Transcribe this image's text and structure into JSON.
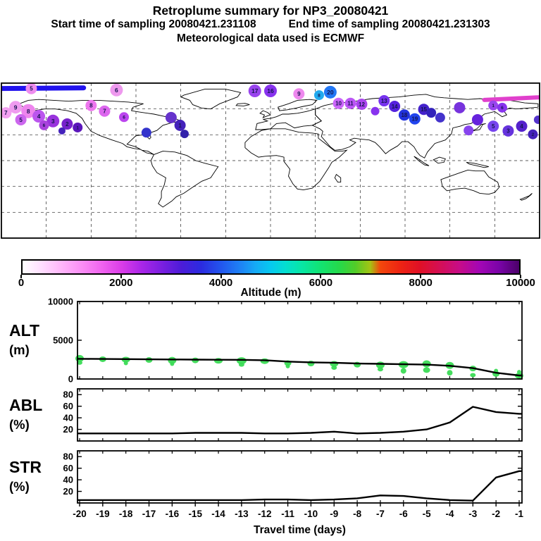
{
  "header": {
    "title": "Retroplume summary for NP3_20080421",
    "start_line": "Start time of sampling 20080421.231108",
    "end_line": "End time of sampling 20080421.231303",
    "met_line": "Meteorological data used is ECMWF"
  },
  "colorbar": {
    "label": "Altitude (m)",
    "tick_labels": [
      "0",
      "2000",
      "4000",
      "6000",
      "8000",
      "10000"
    ],
    "stops_pos_color": [
      [
        0,
        "#ffffff"
      ],
      [
        0.04,
        "#ffdcff"
      ],
      [
        0.08,
        "#ffb4fa"
      ],
      [
        0.12,
        "#fa8df5"
      ],
      [
        0.16,
        "#f063ef"
      ],
      [
        0.2,
        "#da3ce8"
      ],
      [
        0.24,
        "#a926e8"
      ],
      [
        0.28,
        "#7b1fe0"
      ],
      [
        0.32,
        "#4c1cd8"
      ],
      [
        0.36,
        "#2b2be0"
      ],
      [
        0.4,
        "#2256ee"
      ],
      [
        0.44,
        "#1e84f5"
      ],
      [
        0.47,
        "#15abf5"
      ],
      [
        0.5,
        "#06c9ef"
      ],
      [
        0.53,
        "#04ded0"
      ],
      [
        0.56,
        "#07e6a8"
      ],
      [
        0.6,
        "#12e372"
      ],
      [
        0.64,
        "#27d948"
      ],
      [
        0.67,
        "#52cc29"
      ],
      [
        0.7,
        "#a4c414"
      ],
      [
        0.72,
        "#f2480c"
      ],
      [
        0.76,
        "#ee2413"
      ],
      [
        0.8,
        "#e01026"
      ],
      [
        0.84,
        "#d40f55"
      ],
      [
        0.88,
        "#c70c88"
      ],
      [
        0.92,
        "#a306b5"
      ],
      [
        0.96,
        "#7a04a8"
      ],
      [
        1,
        "#4a0168"
      ]
    ]
  },
  "xaxis": {
    "label": "Travel time (days)",
    "ticks": [
      -20,
      -19,
      -18,
      -17,
      -16,
      -15,
      -14,
      -13,
      -12,
      -11,
      -10,
      -9,
      -8,
      -7,
      -6,
      -5,
      -4,
      -3,
      -2,
      -1
    ]
  },
  "chart_data": [
    {
      "type": "scatter",
      "name": "retroplume-map",
      "projection": "equirectangular",
      "lon_range": [
        -180,
        180
      ],
      "lat_range": [
        -90,
        90
      ],
      "grid_step_deg": 30,
      "marker_meaning": "daily plume centroids colored by altitude (m), labeled with travel day",
      "markers": [
        {
          "lon": -177,
          "lat": 55.5,
          "label": "7",
          "color": "#f2a0f0",
          "r": 8
        },
        {
          "lon": -170.5,
          "lat": 62,
          "label": "9",
          "color": "#ef9bef",
          "r": 9
        },
        {
          "lon": -162,
          "lat": 57.5,
          "label": "8",
          "color": "#ee85ee",
          "r": 10
        },
        {
          "lon": -167,
          "lat": 47.5,
          "label": "5",
          "color": "#cc66ee",
          "r": 8
        },
        {
          "lon": -155,
          "lat": 51.5,
          "label": "4",
          "color": "#bb55ee",
          "r": 9
        },
        {
          "lon": -145.5,
          "lat": 46,
          "label": "3",
          "color": "#9933dd",
          "r": 9
        },
        {
          "lon": -136,
          "lat": 42.5,
          "label": "2",
          "color": "#7722cc",
          "r": 8
        },
        {
          "lon": -129,
          "lat": 38.5,
          "label": "1",
          "color": "#5b16bb",
          "r": 7
        },
        {
          "lon": -151.5,
          "lat": 41,
          "label": "6",
          "color": "#aa44dd",
          "r": 7
        },
        {
          "lon": -139.5,
          "lat": 34.5,
          "label": "",
          "color": "#4422bb",
          "r": 5
        },
        {
          "lon": -160,
          "lat": 83.7,
          "label": "5",
          "color": "#ee8cee",
          "r": 8
        },
        {
          "lon": -120,
          "lat": 64,
          "label": "8",
          "color": "#ee77ee",
          "r": 8
        },
        {
          "lon": -111,
          "lat": 57.5,
          "label": "7",
          "color": "#dd66ee",
          "r": 8
        },
        {
          "lon": -103,
          "lat": 82,
          "label": "6",
          "color": "#ee99ee",
          "r": 9
        },
        {
          "lon": -98,
          "lat": 50.5,
          "label": "6",
          "color": "#bb44ee",
          "r": 7
        },
        {
          "lon": -83,
          "lat": 32.5,
          "label": "",
          "color": "#3333cc",
          "r": 7
        },
        {
          "lon": -66.5,
          "lat": 50,
          "label": "",
          "color": "#6633cc",
          "r": 8
        },
        {
          "lon": -60.5,
          "lat": 41,
          "label": "1",
          "color": "#4422bb",
          "r": 8
        },
        {
          "lon": -57.5,
          "lat": 31,
          "label": "",
          "color": "#3322aa",
          "r": 6
        },
        {
          "lon": -10.5,
          "lat": 81,
          "label": "17",
          "color": "#9944ee",
          "r": 9
        },
        {
          "lon": 0,
          "lat": 81,
          "label": "16",
          "color": "#8833ee",
          "r": 9
        },
        {
          "lon": 19,
          "lat": 77.5,
          "label": "9",
          "color": "#ee88ee",
          "r": 8
        },
        {
          "lon": 32.5,
          "lat": 76,
          "label": "8",
          "color": "#22aaee",
          "r": 7
        },
        {
          "lon": 40,
          "lat": 79.5,
          "label": "20",
          "color": "#2277f5",
          "r": 9
        },
        {
          "lon": 45.5,
          "lat": 66.5,
          "label": "10",
          "color": "#cc66fa",
          "r": 8
        },
        {
          "lon": 53.5,
          "lat": 66.5,
          "label": "11",
          "color": "#bb55f5",
          "r": 8
        },
        {
          "lon": 61,
          "lat": 65.5,
          "label": "12",
          "color": "#aa44ee",
          "r": 8
        },
        {
          "lon": 70,
          "lat": 57.5,
          "label": "",
          "color": "#8833ee",
          "r": 6
        },
        {
          "lon": 76,
          "lat": 69.5,
          "label": "13",
          "color": "#7733ee",
          "r": 8
        },
        {
          "lon": 83,
          "lat": 63,
          "label": "14",
          "color": "#5522dd",
          "r": 8
        },
        {
          "lon": 89.5,
          "lat": 53,
          "label": "18",
          "color": "#2233dd",
          "r": 8
        },
        {
          "lon": 96.5,
          "lat": 48.5,
          "label": "19",
          "color": "#2244ee",
          "r": 8
        },
        {
          "lon": 102.5,
          "lat": 59.5,
          "label": "15",
          "color": "#4422cc",
          "r": 8
        },
        {
          "lon": 107.5,
          "lat": 55.5,
          "label": "",
          "color": "#3322bb",
          "r": 7
        },
        {
          "lon": 113.5,
          "lat": 50,
          "label": "",
          "color": "#4433cc",
          "r": 7
        },
        {
          "lon": 126.5,
          "lat": 61.5,
          "label": "",
          "color": "#7733dd",
          "r": 8
        },
        {
          "lon": 132.5,
          "lat": 35,
          "label": "",
          "color": "#8844ee",
          "r": 7
        },
        {
          "lon": 138.5,
          "lat": 47.5,
          "label": "",
          "color": "#6622dd",
          "r": 8
        },
        {
          "lon": 149,
          "lat": 64,
          "label": "1",
          "color": "#9944ee",
          "r": 7
        },
        {
          "lon": 155,
          "lat": 61.5,
          "label": "6",
          "color": "#8833ee",
          "r": 7
        },
        {
          "lon": 149,
          "lat": 40,
          "label": "5",
          "color": "#7744ee",
          "r": 8
        },
        {
          "lon": 159,
          "lat": 34.5,
          "label": "3",
          "color": "#6633dd",
          "r": 8
        },
        {
          "lon": 168,
          "lat": 40,
          "label": "4",
          "color": "#5522cc",
          "r": 8
        },
        {
          "lon": 175.5,
          "lat": 30.5,
          "label": "2",
          "color": "#4422bb",
          "r": 7
        },
        {
          "lon": 179,
          "lat": 47.5,
          "label": "",
          "color": "#5533cc",
          "r": 6
        }
      ],
      "streaks": [
        {
          "lon": [
            -180,
            -125
          ],
          "lat": [
            83.8,
            84.5
          ],
          "color": "#2213ee",
          "width": 7
        },
        {
          "lon": [
            143,
            180
          ],
          "lat": [
            70.5,
            73.5
          ],
          "color": "#e040cc",
          "width": 6
        }
      ]
    },
    {
      "type": "line",
      "name": "ALT",
      "panel_label": [
        "ALT",
        "(m)"
      ],
      "ylim": [
        0,
        10000
      ],
      "yticks": [
        0,
        5000,
        10000
      ],
      "line_color": "#000000",
      "blob_color": "#3bdb55",
      "values": [
        2600,
        2580,
        2560,
        2540,
        2520,
        2500,
        2480,
        2470,
        2420,
        2250,
        2150,
        2100,
        2000,
        1950,
        1900,
        1850,
        1700,
        1400,
        800,
        450
      ],
      "blobs_day_alt_rx_ry": [
        [
          -20,
          2650,
          6,
          5
        ],
        [
          -20,
          2100,
          4,
          3
        ],
        [
          -19,
          2550,
          5,
          4
        ],
        [
          -18,
          2500,
          6,
          4
        ],
        [
          -18,
          2050,
          3,
          3
        ],
        [
          -17,
          2450,
          5,
          4
        ],
        [
          -16,
          2400,
          6,
          5
        ],
        [
          -16,
          1950,
          3,
          3
        ],
        [
          -15,
          2400,
          5,
          4
        ],
        [
          -14,
          2350,
          6,
          4
        ],
        [
          -13,
          2350,
          7,
          5
        ],
        [
          -13,
          1850,
          4,
          3
        ],
        [
          -12,
          2300,
          6,
          4
        ],
        [
          -11,
          2050,
          5,
          4
        ],
        [
          -11,
          1650,
          3,
          3
        ],
        [
          -10,
          2000,
          5,
          4
        ],
        [
          -9,
          1950,
          6,
          4
        ],
        [
          -9,
          1450,
          4,
          3
        ],
        [
          -8,
          1850,
          5,
          4
        ],
        [
          -7,
          1800,
          6,
          5
        ],
        [
          -7,
          1250,
          4,
          3
        ],
        [
          -6,
          1850,
          7,
          5
        ],
        [
          -6,
          1050,
          4,
          4
        ],
        [
          -5,
          1950,
          6,
          5
        ],
        [
          -5,
          1150,
          5,
          4
        ],
        [
          -4,
          1750,
          6,
          5
        ],
        [
          -4,
          800,
          4,
          4
        ],
        [
          -3,
          1350,
          5,
          4
        ],
        [
          -3,
          500,
          4,
          3
        ],
        [
          -2,
          650,
          5,
          4
        ],
        [
          -2,
          1050,
          3,
          3
        ],
        [
          -1,
          420,
          6,
          4
        ],
        [
          -1,
          900,
          3,
          3
        ]
      ]
    },
    {
      "type": "line",
      "name": "ABL",
      "panel_label": [
        "ABL",
        "(%)"
      ],
      "ylim": [
        0,
        90
      ],
      "yticks": [
        20,
        40,
        60,
        80
      ],
      "line_color": "#000000",
      "values": [
        13,
        13,
        13,
        13,
        13,
        14,
        14,
        14,
        13,
        13,
        14,
        16,
        13,
        14,
        16,
        20,
        32,
        59,
        50,
        47
      ]
    },
    {
      "type": "line",
      "name": "STR",
      "panel_label": [
        "STR",
        "(%)"
      ],
      "ylim": [
        0,
        90
      ],
      "yticks": [
        20,
        40,
        60,
        80
      ],
      "line_color": "#000000",
      "values": [
        5,
        5,
        5,
        5,
        5,
        5,
        5,
        5,
        6,
        6,
        5,
        6,
        8,
        13,
        12,
        8,
        5,
        4,
        44,
        55
      ]
    }
  ]
}
